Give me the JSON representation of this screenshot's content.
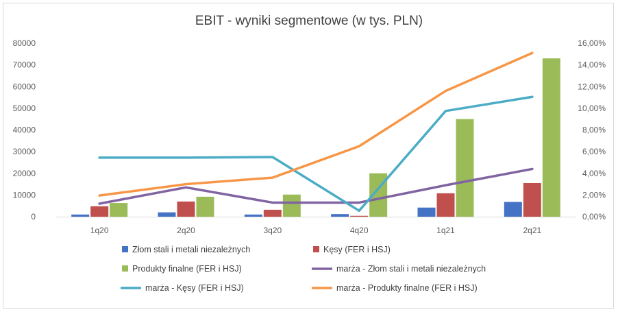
{
  "chart_data": {
    "type": "bar",
    "title": "EBIT - wyniki segmentowe (w tys. PLN)",
    "categories": [
      "1q20",
      "2q20",
      "3q20",
      "4q20",
      "1q21",
      "2q21"
    ],
    "y_left": {
      "min": 0,
      "max": 80000,
      "step": 10000,
      "ticks": [
        "0",
        "10000",
        "20000",
        "30000",
        "40000",
        "50000",
        "60000",
        "70000",
        "80000"
      ]
    },
    "y_right": {
      "min": 0,
      "max": 16,
      "step": 2,
      "ticks": [
        "0,00%",
        "2,00%",
        "4,00%",
        "6,00%",
        "8,00%",
        "10,00%",
        "12,00%",
        "14,00%",
        "16,00%"
      ]
    },
    "bar_series": [
      {
        "name": "Złom stali i metali niezależnych",
        "color": "#4472c4",
        "values": [
          1000,
          2000,
          1000,
          1200,
          4200,
          6800
        ]
      },
      {
        "name": "Kęsy (FER i HSJ)",
        "color": "#c0504d",
        "values": [
          4800,
          7000,
          3200,
          400,
          10800,
          15500
        ]
      },
      {
        "name": "Produkty finalne (FER i HSJ)",
        "color": "#9bbb59",
        "values": [
          6300,
          9200,
          10200,
          20000,
          45000,
          73000
        ]
      }
    ],
    "line_series": [
      {
        "name": "marża - Złom stali i metali niezależnych",
        "color": "#8064a2",
        "values": [
          1.2,
          2.7,
          1.3,
          1.3,
          2.9,
          4.4
        ]
      },
      {
        "name": "marża - Kęsy (FER i HSJ)",
        "color": "#4bacc6",
        "values": [
          5.45,
          5.45,
          5.5,
          0.55,
          9.75,
          11.05
        ]
      },
      {
        "name": "marża - Produkty finalne (FER i HSJ)",
        "color": "#f79646",
        "values": [
          1.95,
          3.0,
          3.6,
          6.5,
          11.6,
          15.1
        ]
      }
    ],
    "legend_position": "bottom"
  }
}
